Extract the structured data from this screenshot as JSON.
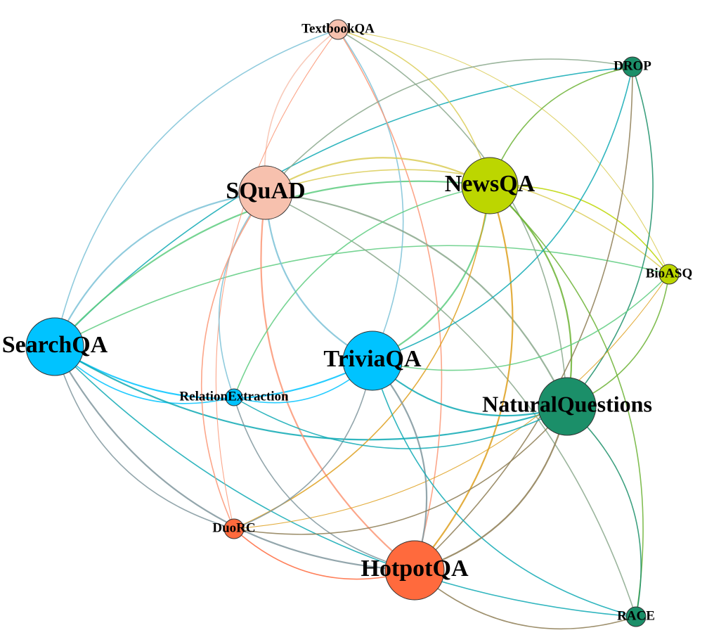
{
  "chart_data": {
    "type": "network",
    "nodes": [
      {
        "id": "textbookqa",
        "label": "TextbookQA",
        "color": "#f7c1ae",
        "size": "small"
      },
      {
        "id": "drop",
        "label": "DROP",
        "color": "#1b8f69",
        "size": "small"
      },
      {
        "id": "squad",
        "label": "SQuAD",
        "color": "#f7c1ae",
        "size": "large"
      },
      {
        "id": "newsqa",
        "label": "NewsQA",
        "color": "#bcd600",
        "size": "large"
      },
      {
        "id": "bioasq",
        "label": "BioASQ",
        "color": "#bcd600",
        "size": "small"
      },
      {
        "id": "searchqa",
        "label": "SearchQA",
        "color": "#00c3ff",
        "size": "large"
      },
      {
        "id": "triviaqa",
        "label": "TriviaQA",
        "color": "#00c3ff",
        "size": "large"
      },
      {
        "id": "relationextraction",
        "label": "RelationExtraction",
        "color": "#00c3ff",
        "size": "small"
      },
      {
        "id": "naturalquestions",
        "label": "NaturalQuestions",
        "color": "#1b8f69",
        "size": "large"
      },
      {
        "id": "duorc",
        "label": "DuoRC",
        "color": "#ff6a3d",
        "size": "small"
      },
      {
        "id": "hotpotqa",
        "label": "HotpotQA",
        "color": "#ff6a3d",
        "size": "large"
      },
      {
        "id": "race",
        "label": "RACE",
        "color": "#1b8f69",
        "size": "small"
      }
    ],
    "edges": [
      [
        "searchqa",
        "textbookqa"
      ],
      [
        "searchqa",
        "drop"
      ],
      [
        "searchqa",
        "squad"
      ],
      [
        "searchqa",
        "newsqa"
      ],
      [
        "searchqa",
        "bioasq"
      ],
      [
        "searchqa",
        "triviaqa"
      ],
      [
        "searchqa",
        "relationextraction"
      ],
      [
        "searchqa",
        "naturalquestions"
      ],
      [
        "searchqa",
        "duorc"
      ],
      [
        "searchqa",
        "hotpotqa"
      ],
      [
        "searchqa",
        "race"
      ],
      [
        "textbookqa",
        "squad"
      ],
      [
        "textbookqa",
        "newsqa"
      ],
      [
        "textbookqa",
        "bioasq"
      ],
      [
        "textbookqa",
        "triviaqa"
      ],
      [
        "textbookqa",
        "naturalquestions"
      ],
      [
        "textbookqa",
        "duorc"
      ],
      [
        "textbookqa",
        "hotpotqa"
      ],
      [
        "squad",
        "drop"
      ],
      [
        "squad",
        "newsqa"
      ],
      [
        "squad",
        "bioasq"
      ],
      [
        "squad",
        "triviaqa"
      ],
      [
        "squad",
        "relationextraction"
      ],
      [
        "squad",
        "naturalquestions"
      ],
      [
        "squad",
        "duorc"
      ],
      [
        "squad",
        "hotpotqa"
      ],
      [
        "squad",
        "race"
      ],
      [
        "newsqa",
        "drop"
      ],
      [
        "newsqa",
        "bioasq"
      ],
      [
        "newsqa",
        "triviaqa"
      ],
      [
        "newsqa",
        "relationextraction"
      ],
      [
        "newsqa",
        "naturalquestions"
      ],
      [
        "newsqa",
        "duorc"
      ],
      [
        "newsqa",
        "hotpotqa"
      ],
      [
        "newsqa",
        "race"
      ],
      [
        "drop",
        "naturalquestions"
      ],
      [
        "drop",
        "triviaqa"
      ],
      [
        "drop",
        "hotpotqa"
      ],
      [
        "bioasq",
        "triviaqa"
      ],
      [
        "bioasq",
        "naturalquestions"
      ],
      [
        "bioasq",
        "duorc"
      ],
      [
        "triviaqa",
        "relationextraction"
      ],
      [
        "triviaqa",
        "naturalquestions"
      ],
      [
        "triviaqa",
        "duorc"
      ],
      [
        "triviaqa",
        "hotpotqa"
      ],
      [
        "triviaqa",
        "race"
      ],
      [
        "relationextraction",
        "naturalquestions"
      ],
      [
        "relationextraction",
        "hotpotqa"
      ],
      [
        "naturalquestions",
        "duorc"
      ],
      [
        "naturalquestions",
        "hotpotqa"
      ],
      [
        "naturalquestions",
        "race"
      ],
      [
        "duorc",
        "hotpotqa"
      ],
      [
        "hotpotqa",
        "race"
      ]
    ]
  }
}
